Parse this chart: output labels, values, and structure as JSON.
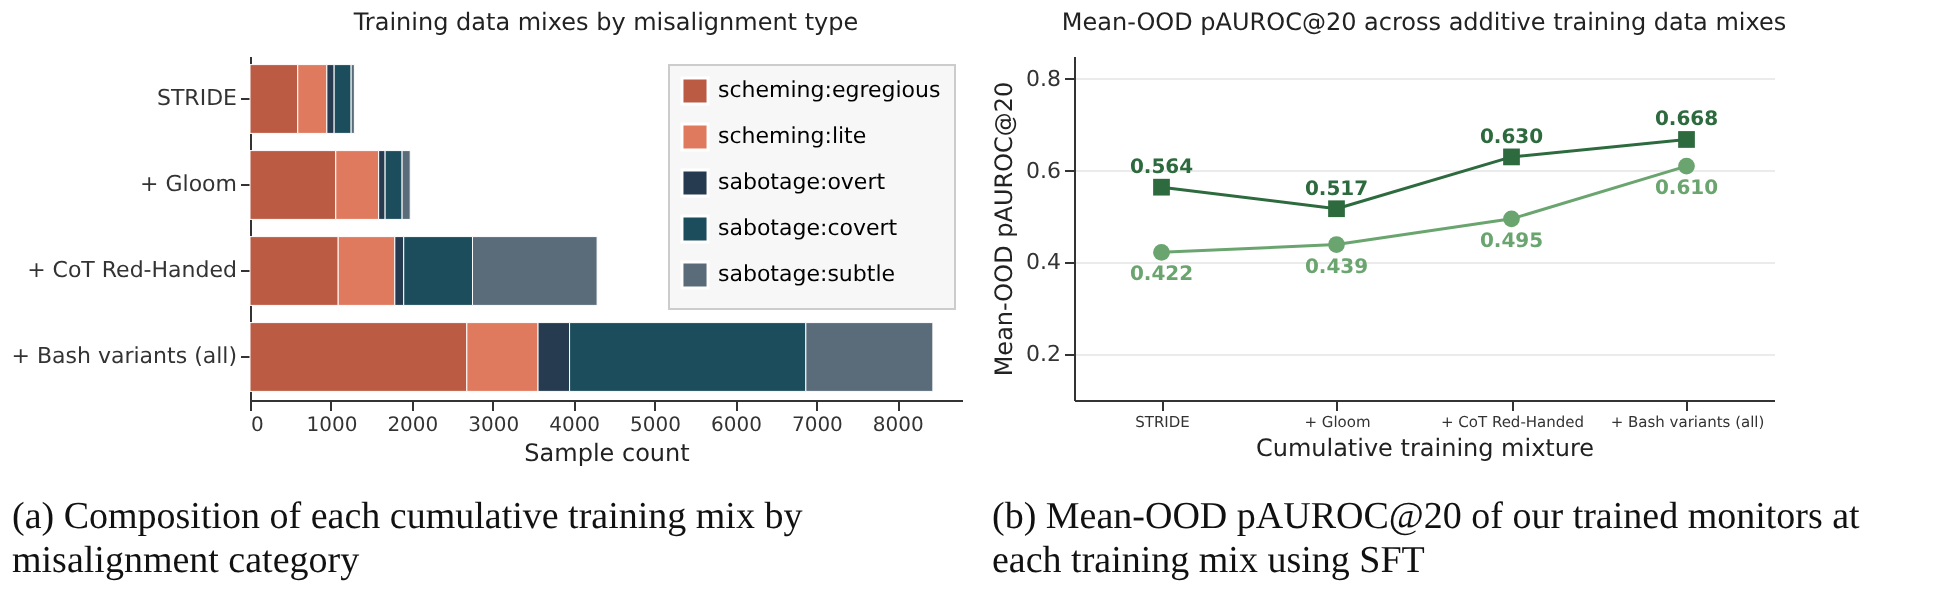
{
  "chart_data": [
    {
      "type": "bar",
      "orientation": "horizontal",
      "stacked": true,
      "title": "Training data mixes by misalignment type",
      "xlabel": "Sample count",
      "categories": [
        "STRIDE",
        "+ Gloom",
        "+ CoT Red-Handed",
        "+ Bash variants (all)"
      ],
      "series": [
        {
          "name": "scheming:egregious",
          "color": "#bc5b44",
          "values": [
            590,
            1060,
            1090,
            2680
          ]
        },
        {
          "name": "scheming:lite",
          "color": "#e07a5f",
          "values": [
            360,
            530,
            700,
            880
          ]
        },
        {
          "name": "sabotage:overt",
          "color": "#263b50",
          "values": [
            90,
            80,
            110,
            390
          ]
        },
        {
          "name": "sabotage:covert",
          "color": "#1b4d5c",
          "values": [
            210,
            210,
            850,
            2920
          ]
        },
        {
          "name": "sabotage:subtle",
          "color": "#5a6b7a",
          "values": [
            40,
            100,
            1540,
            1570
          ]
        }
      ],
      "xlim": [
        0,
        8800
      ],
      "xticks": [
        0,
        1000,
        2000,
        3000,
        4000,
        5000,
        6000,
        7000,
        8000
      ],
      "grid": false,
      "legend": "top right",
      "annotations": [
        "(a) Composition of each cumulative training mix by misalignment category"
      ]
    },
    {
      "type": "line",
      "title": "Mean-OOD pAUROC@20 across additive training data mixes",
      "xlabel": "Cumulative training mixture",
      "ylabel": "Mean-OOD pAUROC@20",
      "categories": [
        "STRIDE",
        "+ Gloom",
        "+ CoT Red-Handed",
        "+ Bash variants (all)"
      ],
      "series": [
        {
          "color": "#6aa56f",
          "marker": "circle",
          "values": [
            0.422,
            0.439,
            0.495,
            0.61
          ],
          "value_labels": [
            "0.422",
            "0.439",
            "0.495",
            "0.610"
          ]
        },
        {
          "color": "#2d6a3e",
          "marker": "square",
          "values": [
            0.564,
            0.517,
            0.63,
            0.668
          ],
          "value_labels": [
            "0.564",
            "0.517",
            "0.630",
            "0.668"
          ]
        }
      ],
      "ylim": [
        0.1,
        0.85
      ],
      "yticks": [
        0.2,
        0.4,
        0.6,
        0.8
      ],
      "grid": "y",
      "annotations": [
        "(b) Mean-OOD pAUROC@20 of our trained monitors at each training mix using SFT"
      ]
    }
  ]
}
